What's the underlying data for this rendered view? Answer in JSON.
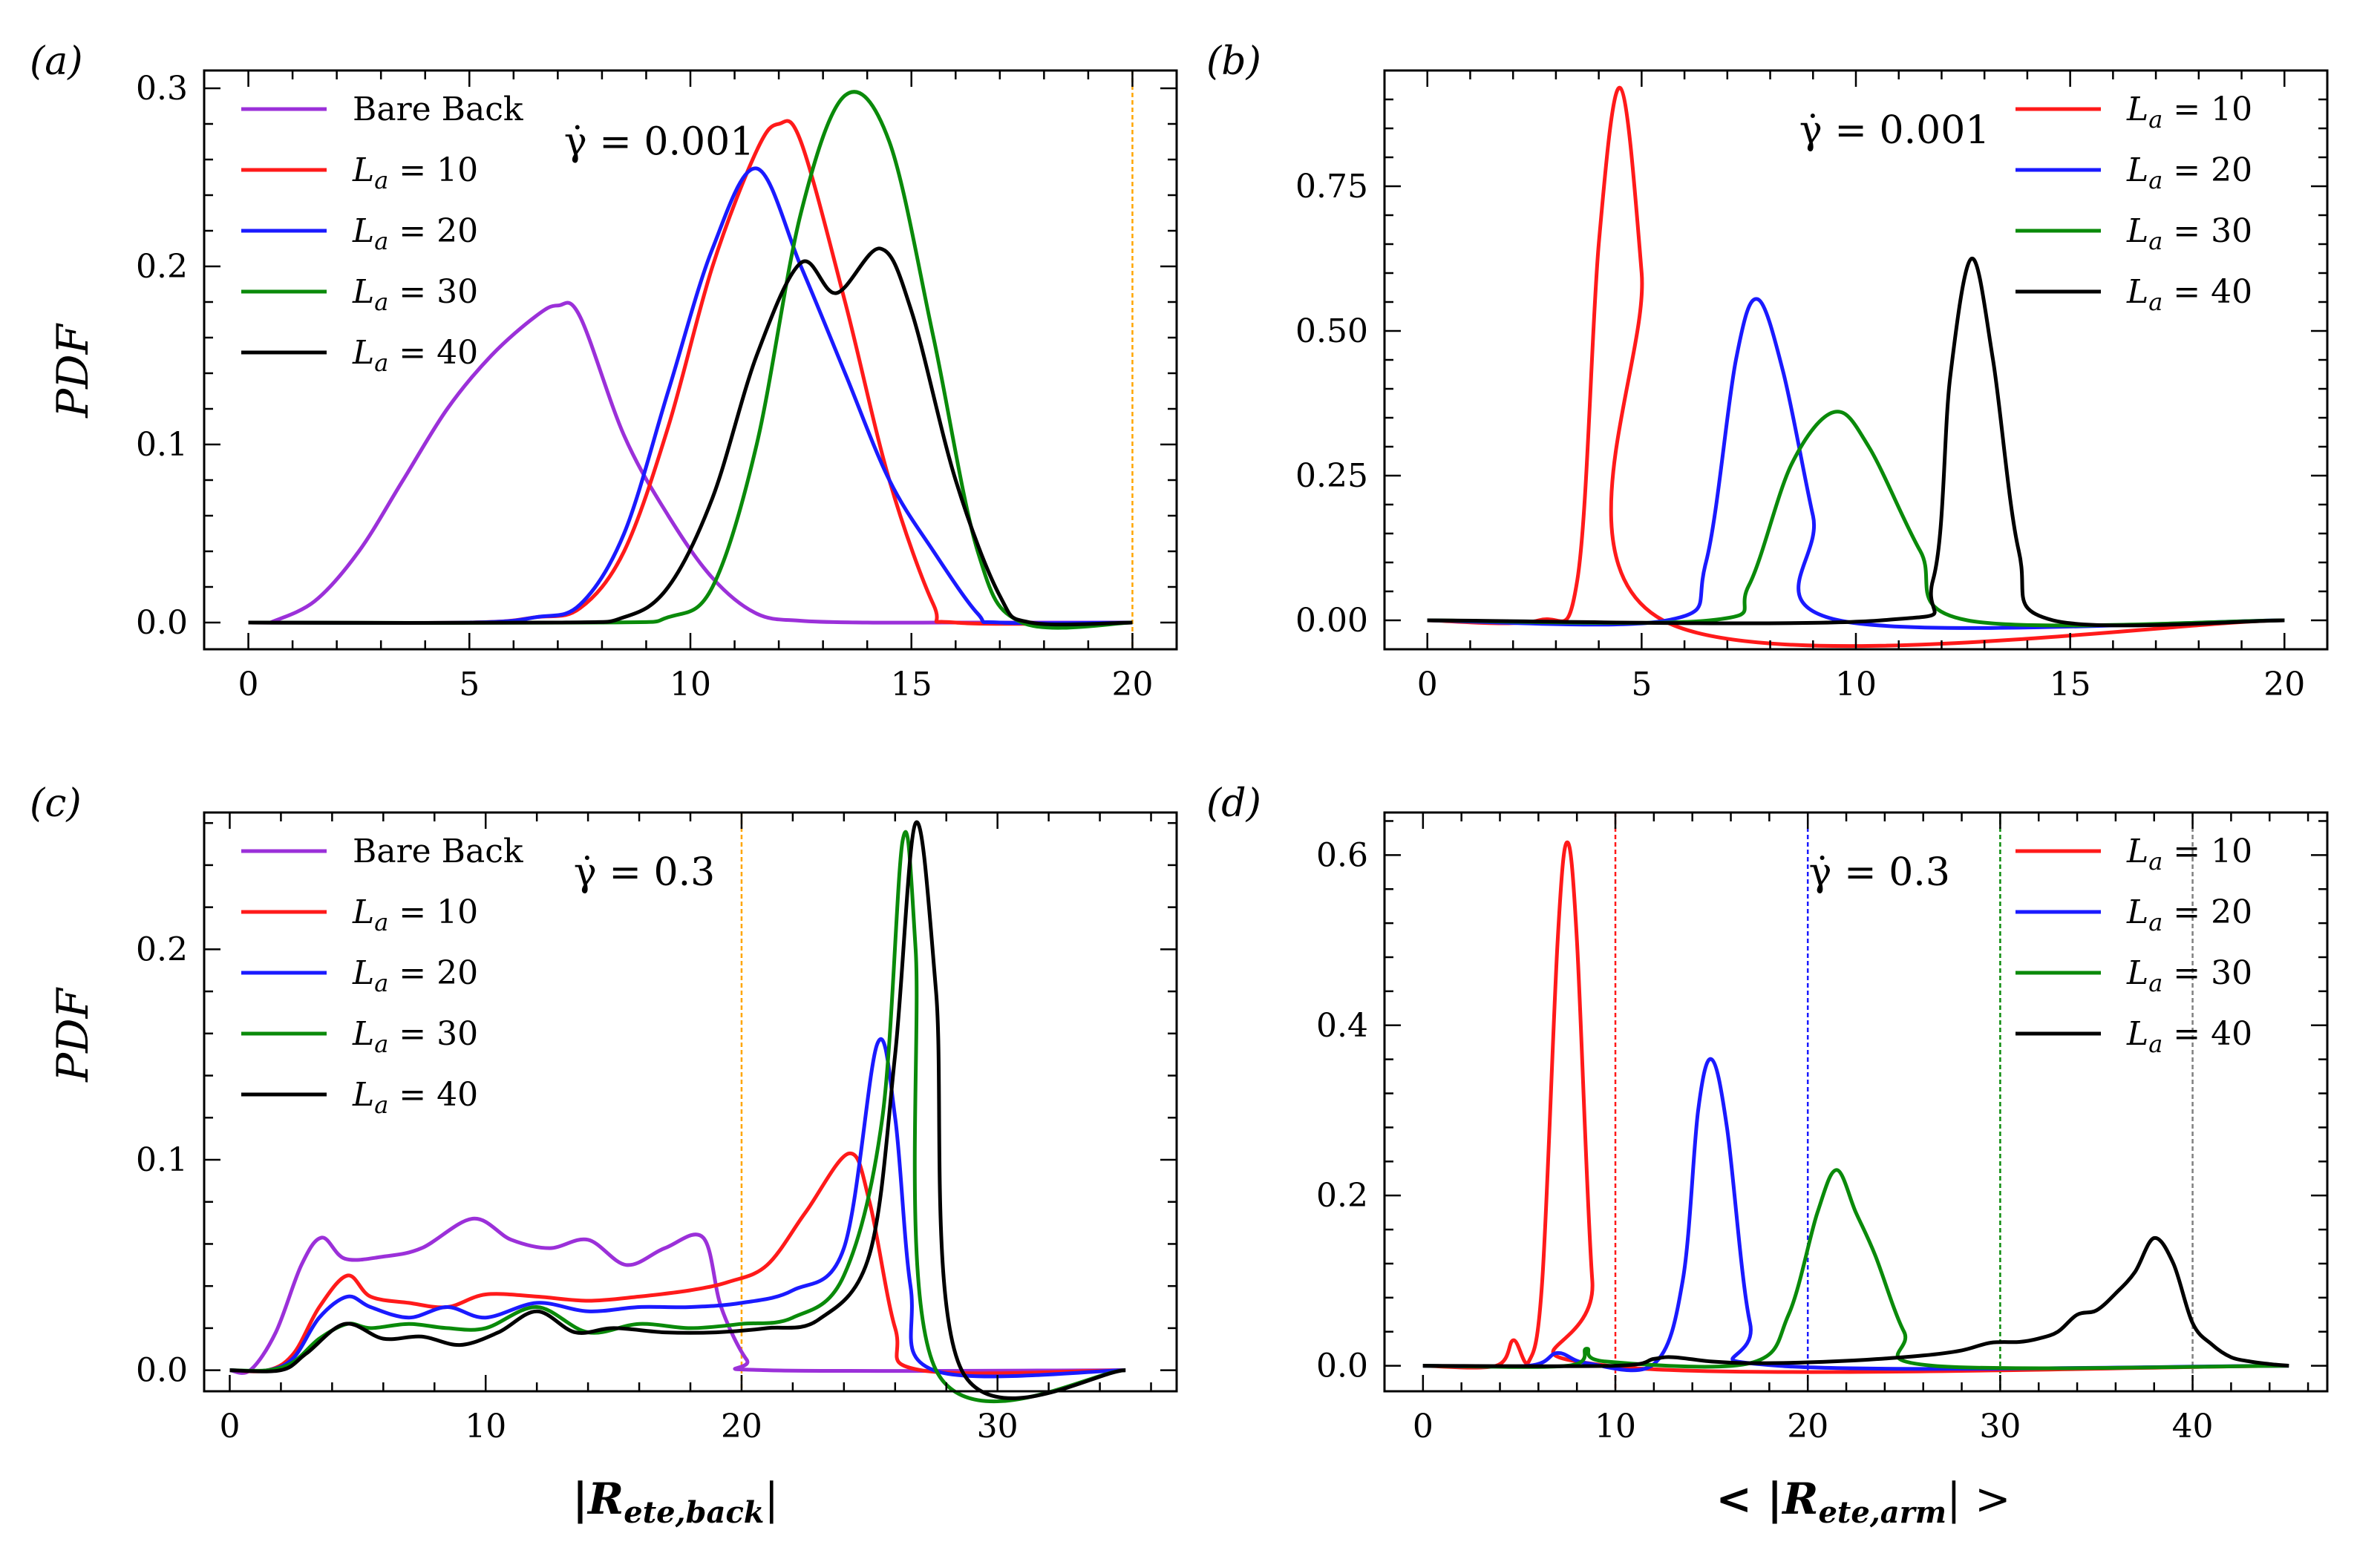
{
  "colors": {
    "bare_back": "#9b30d9",
    "La10": "#ff1a1a",
    "La20": "#1a1aff",
    "La30": "#0a8a0a",
    "La40": "#000000",
    "vline_orange": "#ffa500",
    "vline_gray": "#808080"
  },
  "axis_labels": {
    "ylabel": "PDF",
    "xlabel_left": "|R",
    "xlabel_left_sub": "ete,back",
    "xlabel_left_end": "|",
    "xlabel_right": "< |R",
    "xlabel_right_sub": "ete,arm",
    "xlabel_right_end": "| >"
  },
  "chart_data": [
    {
      "panel": "(a)",
      "type": "line",
      "annotation": "γ̇ = 0.001",
      "xlim": [
        -1,
        21
      ],
      "ylim": [
        -0.015,
        0.31
      ],
      "xticks": [
        0,
        5,
        10,
        15,
        20
      ],
      "yticks": [
        0.0,
        0.1,
        0.2,
        0.3
      ],
      "ytick_labels": [
        "0.0",
        "0.1",
        "0.2",
        "0.3"
      ],
      "legend_position": "top-left",
      "vlines": [
        {
          "x": 20,
          "color": "#ffa500"
        }
      ],
      "series": [
        {
          "name": "Bare Back",
          "key": "bare_back",
          "x": [
            0.5,
            1.5,
            2.5,
            3.5,
            4.5,
            5.5,
            6.5,
            7.0,
            7.5,
            8.5,
            9.5,
            10.5,
            11.5,
            12.5,
            14,
            16,
            20
          ],
          "y": [
            0,
            0.012,
            0.04,
            0.08,
            0.12,
            0.15,
            0.172,
            0.178,
            0.172,
            0.105,
            0.06,
            0.025,
            0.005,
            0.001,
            0,
            0,
            0
          ]
        },
        {
          "name": "L_a = 10",
          "key": "La10",
          "x": [
            0,
            5,
            6.5,
            7.5,
            8.5,
            9.5,
            10.5,
            11.5,
            12,
            12.5,
            13.5,
            14.5,
            15.5,
            16,
            20
          ],
          "y": [
            0,
            0,
            0.003,
            0.008,
            0.04,
            0.11,
            0.2,
            0.265,
            0.28,
            0.27,
            0.18,
            0.08,
            0.01,
            0,
            0
          ]
        },
        {
          "name": "L_a = 20",
          "key": "La20",
          "x": [
            0,
            5,
            6.5,
            7.5,
            8.5,
            9.5,
            10.5,
            11.5,
            12.5,
            13.5,
            14.5,
            15.5,
            16.5,
            17,
            20
          ],
          "y": [
            0,
            0,
            0.003,
            0.01,
            0.05,
            0.13,
            0.21,
            0.255,
            0.2,
            0.14,
            0.08,
            0.04,
            0.005,
            0,
            0
          ]
        },
        {
          "name": "L_a = 30",
          "key": "La30",
          "x": [
            0,
            8,
            9.5,
            10.5,
            11.5,
            12.5,
            13.5,
            14.5,
            15.5,
            16.5,
            17.5,
            20
          ],
          "y": [
            0,
            0,
            0.003,
            0.02,
            0.1,
            0.23,
            0.296,
            0.27,
            0.16,
            0.04,
            0,
            0
          ]
        },
        {
          "name": "L_a = 40",
          "key": "La40",
          "x": [
            0,
            7,
            8.5,
            9.5,
            10.5,
            11.5,
            12.5,
            13.3,
            14.3,
            15,
            16,
            17,
            17.7,
            20
          ],
          "y": [
            0,
            0,
            0.003,
            0.02,
            0.07,
            0.15,
            0.202,
            0.185,
            0.21,
            0.175,
            0.08,
            0.015,
            0,
            0
          ]
        }
      ]
    },
    {
      "panel": "(b)",
      "type": "line",
      "annotation": "γ̇ = 0.001",
      "xlim": [
        -1,
        21
      ],
      "ylim": [
        -0.05,
        0.95
      ],
      "xticks": [
        0,
        5,
        10,
        15,
        20
      ],
      "yticks": [
        0.0,
        0.25,
        0.5,
        0.75
      ],
      "ytick_labels": [
        "0.00",
        "0.25",
        "0.50",
        "0.75"
      ],
      "legend_position": "top-right",
      "vlines": [],
      "series": [
        {
          "name": "L_a = 10",
          "key": "La10",
          "x": [
            0,
            2.6,
            3.5,
            4.0,
            4.5,
            5.0,
            5.5,
            20
          ],
          "y": [
            0,
            0,
            0.07,
            0.65,
            0.92,
            0.6,
            0,
            0
          ]
        },
        {
          "name": "L_a = 20",
          "key": "La20",
          "x": [
            0,
            5.6,
            6.5,
            7.2,
            7.7,
            8.3,
            9,
            9.6,
            20
          ],
          "y": [
            0,
            0,
            0.1,
            0.45,
            0.555,
            0.43,
            0.18,
            0,
            0
          ]
        },
        {
          "name": "L_a = 30",
          "key": "La30",
          "x": [
            0,
            6.6,
            7.5,
            8.5,
            9.5,
            10.3,
            11.5,
            12.6,
            20
          ],
          "y": [
            0,
            0,
            0.06,
            0.27,
            0.36,
            0.3,
            0.12,
            0,
            0
          ]
        },
        {
          "name": "L_a = 40",
          "key": "La40",
          "x": [
            0,
            10.6,
            11.8,
            12.2,
            12.7,
            13.2,
            13.8,
            14.6,
            20
          ],
          "y": [
            0,
            0,
            0.07,
            0.42,
            0.625,
            0.45,
            0.12,
            0,
            0
          ]
        }
      ]
    },
    {
      "panel": "(c)",
      "type": "line",
      "annotation": "γ̇ = 0.3",
      "xlim": [
        -1,
        37
      ],
      "ylim": [
        -0.01,
        0.265
      ],
      "xticks": [
        0,
        10,
        20,
        30
      ],
      "yticks": [
        0.0,
        0.1,
        0.2
      ],
      "ytick_labels": [
        "0.0",
        "0.1",
        "0.2"
      ],
      "legend_position": "top-left",
      "vlines": [
        {
          "x": 20,
          "color": "#ffa500"
        }
      ],
      "series": [
        {
          "name": "Bare Back",
          "key": "bare_back",
          "x": [
            0,
            0.8,
            1.8,
            2.8,
            3.6,
            4.5,
            6,
            7.5,
            9.5,
            11,
            12.5,
            14,
            15.5,
            17,
            18.5,
            19.2,
            20.2,
            21,
            35
          ],
          "y": [
            0,
            0,
            0.018,
            0.05,
            0.063,
            0.053,
            0.054,
            0.058,
            0.072,
            0.062,
            0.058,
            0.062,
            0.05,
            0.058,
            0.063,
            0.03,
            0.005,
            0,
            0
          ]
        },
        {
          "name": "L_a = 10",
          "key": "La10",
          "x": [
            0,
            1.5,
            2.5,
            3.5,
            4.6,
            5.5,
            7,
            8.5,
            10,
            12,
            14,
            16,
            18,
            19.5,
            21,
            22.5,
            24.2,
            25,
            26,
            27,
            35
          ],
          "y": [
            0,
            0,
            0.008,
            0.03,
            0.045,
            0.035,
            0.032,
            0.03,
            0.036,
            0.035,
            0.033,
            0.035,
            0.038,
            0.042,
            0.05,
            0.075,
            0.103,
            0.08,
            0.02,
            0,
            0
          ]
        },
        {
          "name": "L_a = 20",
          "key": "La20",
          "x": [
            0,
            1.5,
            2.5,
            3.5,
            4.6,
            5.5,
            7,
            8.5,
            10,
            12,
            14,
            16,
            18,
            20,
            22,
            24,
            25.3,
            26,
            26.6,
            27.5,
            35
          ],
          "y": [
            0,
            0,
            0.006,
            0.025,
            0.035,
            0.03,
            0.025,
            0.03,
            0.025,
            0.032,
            0.028,
            0.03,
            0.03,
            0.032,
            0.038,
            0.058,
            0.155,
            0.12,
            0.04,
            0,
            0
          ]
        },
        {
          "name": "L_a = 30",
          "key": "La30",
          "x": [
            0,
            1.5,
            2.5,
            3.5,
            4.6,
            5.5,
            7,
            8.5,
            10,
            12,
            14,
            16,
            18,
            20,
            22,
            24,
            25.5,
            26.3,
            26.8,
            27.6,
            35
          ],
          "y": [
            0,
            0,
            0.004,
            0.015,
            0.022,
            0.02,
            0.022,
            0.02,
            0.02,
            0.03,
            0.018,
            0.022,
            0.02,
            0.022,
            0.025,
            0.045,
            0.12,
            0.252,
            0.2,
            0,
            0
          ]
        },
        {
          "name": "L_a = 40",
          "key": "La40",
          "x": [
            0,
            2,
            3,
            4.5,
            6,
            7.5,
            9,
            10.5,
            12,
            13.5,
            15,
            17,
            19,
            21,
            23,
            25,
            26,
            26.8,
            27.6,
            28.6,
            35
          ],
          "y": [
            0,
            0,
            0.008,
            0.022,
            0.015,
            0.016,
            0.012,
            0.018,
            0.028,
            0.018,
            0.02,
            0.018,
            0.018,
            0.02,
            0.024,
            0.055,
            0.15,
            0.26,
            0.18,
            0,
            0
          ]
        }
      ]
    },
    {
      "panel": "(d)",
      "type": "line",
      "annotation": "γ̇ = 0.3",
      "xlim": [
        -2,
        47
      ],
      "ylim": [
        -0.03,
        0.65
      ],
      "xticks": [
        0,
        10,
        20,
        30,
        40
      ],
      "yticks": [
        0.0,
        0.2,
        0.4,
        0.6
      ],
      "ytick_labels": [
        "0.0",
        "0.2",
        "0.4",
        "0.6"
      ],
      "legend_position": "top-right",
      "vlines": [
        {
          "x": 10,
          "color": "#ff1a1a"
        },
        {
          "x": 20,
          "color": "#1a1aff"
        },
        {
          "x": 30,
          "color": "#0a8a0a"
        },
        {
          "x": 40,
          "color": "#808080"
        }
      ],
      "series": [
        {
          "name": "L_a = 10",
          "key": "La10",
          "x": [
            0,
            3.8,
            4.7,
            5.5,
            6.2,
            7.0,
            7.5,
            8.0,
            8.8,
            9.6,
            45
          ],
          "y": [
            0,
            0,
            0.03,
            0.005,
            0.1,
            0.5,
            0.615,
            0.5,
            0.1,
            0,
            0
          ]
        },
        {
          "name": "L_a = 20",
          "key": "La20",
          "x": [
            0,
            5.5,
            7,
            8.5,
            12,
            13.5,
            14.3,
            15,
            15.8,
            17,
            18.5,
            45
          ],
          "y": [
            0,
            0,
            0.015,
            0.003,
            0.002,
            0.1,
            0.3,
            0.36,
            0.28,
            0.05,
            0,
            0
          ]
        },
        {
          "name": "L_a = 30",
          "key": "La30",
          "x": [
            0,
            7.5,
            8.5,
            9.5,
            17,
            19,
            20.5,
            21.5,
            22.5,
            23.5,
            25,
            26.5,
            45
          ],
          "y": [
            0,
            0,
            0.02,
            0.005,
            0.003,
            0.06,
            0.18,
            0.23,
            0.18,
            0.13,
            0.04,
            0,
            0
          ]
        },
        {
          "name": "L_a = 40",
          "key": "La40",
          "x": [
            0,
            10,
            12,
            13,
            15,
            17,
            20,
            23,
            26,
            28,
            29.5,
            31,
            32,
            33,
            34,
            35,
            36,
            37,
            38,
            39,
            40,
            41,
            42,
            43,
            44,
            45
          ],
          "y": [
            0,
            0,
            0.008,
            0.01,
            0.005,
            0.003,
            0.004,
            0.007,
            0.012,
            0.018,
            0.027,
            0.028,
            0.032,
            0.04,
            0.06,
            0.065,
            0.085,
            0.11,
            0.15,
            0.12,
            0.05,
            0.025,
            0.01,
            0.005,
            0.002,
            0
          ]
        }
      ]
    }
  ]
}
